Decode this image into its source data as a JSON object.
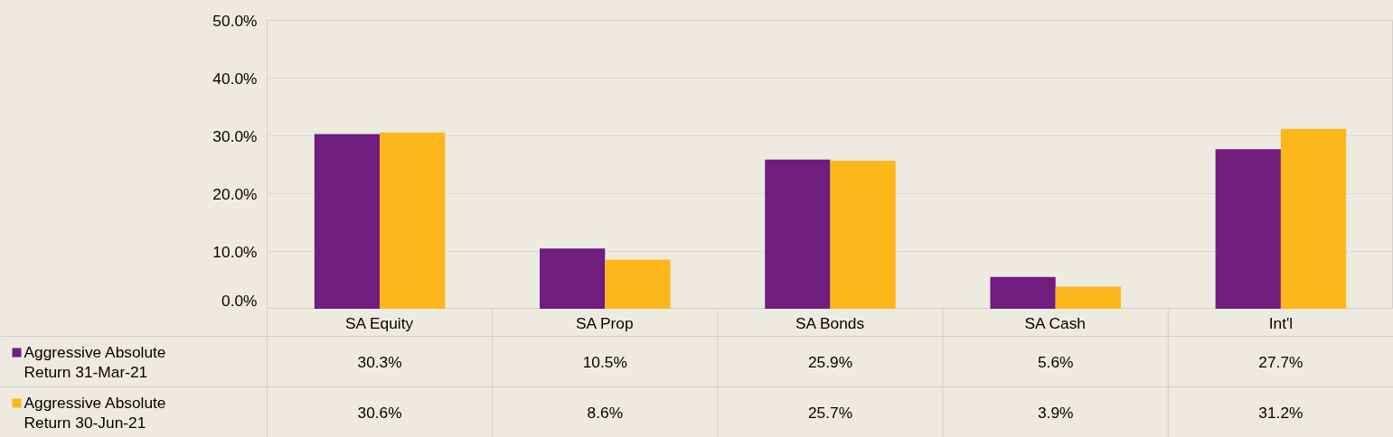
{
  "chart_data": {
    "type": "bar",
    "categories": [
      "SA Equity",
      "SA Prop",
      "SA Bonds",
      "SA Cash",
      "Int'l"
    ],
    "series": [
      {
        "name": "Aggressive Absolute Return 31-Mar-21",
        "color": "#6f1d7e",
        "values": [
          30.3,
          10.5,
          25.9,
          5.6,
          27.7
        ],
        "value_labels": [
          "30.3%",
          "10.5%",
          "25.9%",
          "5.6%",
          "27.7%"
        ]
      },
      {
        "name": "Aggressive Absolute Return 30-Jun-21",
        "color": "#fdb71a",
        "values": [
          30.6,
          8.6,
          25.7,
          3.9,
          31.2
        ],
        "value_labels": [
          "30.6%",
          "8.6%",
          "25.7%",
          "3.9%",
          "31.2%"
        ]
      }
    ],
    "ylim": [
      0,
      50
    ],
    "yticks": [
      {
        "value": 0,
        "label": "0.0%"
      },
      {
        "value": 10,
        "label": "10.0%"
      },
      {
        "value": 20,
        "label": "20.0%"
      },
      {
        "value": 30,
        "label": "30.0%"
      },
      {
        "value": 40,
        "label": "40.0%"
      },
      {
        "value": 50,
        "label": "50.0%"
      }
    ],
    "grid": "y",
    "legend": "bottom"
  }
}
